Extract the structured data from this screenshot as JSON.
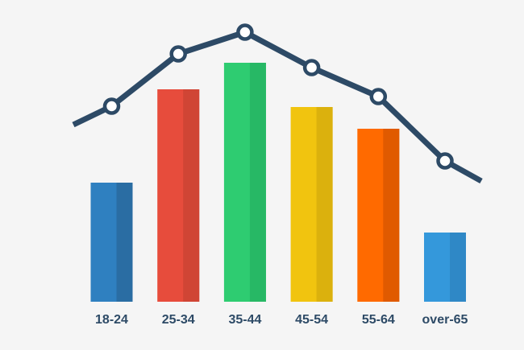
{
  "chart_data": {
    "type": "bar",
    "title": "",
    "xlabel": "",
    "ylabel": "",
    "categories": [
      "18-24",
      "25-34",
      "35-44",
      "45-54",
      "55-64",
      "over-65"
    ],
    "values": [
      148,
      264,
      297,
      242,
      215,
      86
    ],
    "bar_colors": [
      "#2f80c0",
      "#e74c3c",
      "#2ecc71",
      "#f1c40f",
      "#ff6a00",
      "#3498db"
    ],
    "bar_shade_colors": [
      "#2a6da3",
      "#d04535",
      "#27b865",
      "#dbb10d",
      "#e05a00",
      "#2f88c6"
    ],
    "ylim": [
      0,
      300
    ],
    "grid": false,
    "line_overlay": {
      "color": "#2d4a66",
      "marker_fill": "#ffffff",
      "points": [
        {
          "x": "18-24",
          "y": 243
        },
        {
          "x": "25-34",
          "y": 308
        },
        {
          "x": "35-44",
          "y": 335
        },
        {
          "x": "45-54",
          "y": 291
        },
        {
          "x": "55-64",
          "y": 255
        },
        {
          "x": "over-65",
          "y": 175
        }
      ],
      "start_y": 220,
      "end_y": 150
    }
  }
}
